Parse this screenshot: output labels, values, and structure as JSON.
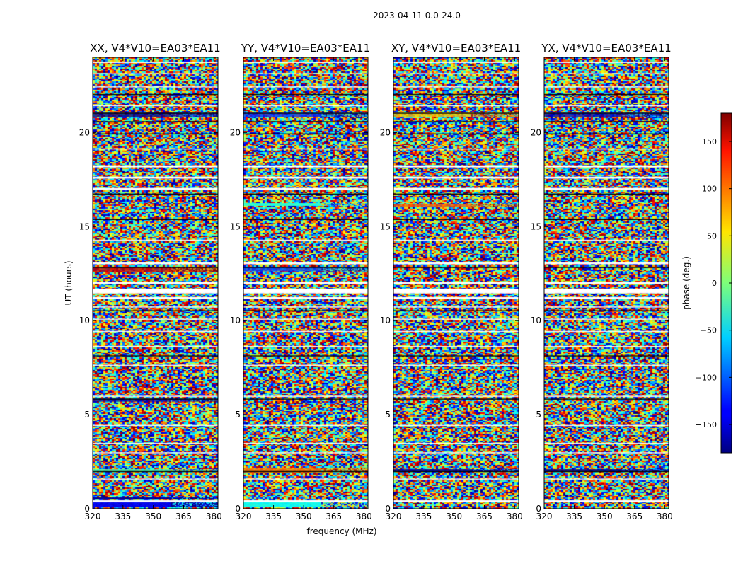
{
  "chart_data": {
    "type": "heatmap",
    "suptitle": "2023-04-11 0.0-24.0",
    "xlabel": "frequency (MHz)",
    "ylabel": "UT (hours)",
    "xlim": [
      320,
      382
    ],
    "ylim": [
      0,
      24
    ],
    "x_ticks": [
      320,
      335,
      350,
      365,
      380
    ],
    "y_ticks": [
      0,
      5,
      10,
      15,
      20
    ],
    "colormap": "jet",
    "colorbar": {
      "label": "phase (deg.)",
      "range": [
        -180,
        180
      ],
      "ticks": [
        150,
        100,
        50,
        0,
        -50,
        -100,
        -150
      ]
    },
    "panels": [
      {
        "title": "XX, V4*V10=EA03*EA11",
        "strong_bands": [
          {
            "t": [
              20.85,
              21.05
            ],
            "phase": -175
          },
          {
            "t": [
              12.6,
              12.85
            ],
            "phase": 155
          },
          {
            "t": [
              5.7,
              5.85
            ],
            "phase": -170
          },
          {
            "t": [
              0.1,
              0.45
            ],
            "phase": -140
          },
          {
            "t": [
              0.5,
              0.6
            ],
            "phase": -170
          },
          {
            "t": [
              1.95,
              2.1
            ],
            "phase": -20
          }
        ]
      },
      {
        "title": "YY, V4*V10=EA03*EA11",
        "strong_bands": [
          {
            "t": [
              20.85,
              21.05
            ],
            "phase": -120
          },
          {
            "t": [
              12.65,
              12.85
            ],
            "phase": -110
          },
          {
            "t": [
              16.1,
              16.25
            ],
            "phase": -30
          },
          {
            "t": [
              1.95,
              2.15
            ],
            "phase": 90
          },
          {
            "t": [
              0.1,
              0.45
            ],
            "phase": -40
          }
        ]
      },
      {
        "title": "XY, V4*V10=EA03*EA11",
        "strong_bands": [
          {
            "t": [
              20.85,
              21.05
            ],
            "phase": 60
          },
          {
            "t": [
              16.05,
              16.2
            ],
            "phase": 100
          },
          {
            "t": [
              1.95,
              2.1
            ],
            "phase": -170
          }
        ]
      },
      {
        "title": "YX, V4*V10=EA03*EA11",
        "strong_bands": [
          {
            "t": [
              20.85,
              21.05
            ],
            "phase": -160
          },
          {
            "t": [
              1.95,
              2.1
            ],
            "phase": -175
          }
        ]
      }
    ],
    "gaps_white": [
      [
        0.35,
        0.45
      ],
      [
        1.55,
        1.6
      ],
      [
        2.95,
        3.0
      ],
      [
        3.45,
        3.5
      ],
      [
        4.4,
        4.45
      ],
      [
        5.95,
        6.0
      ],
      [
        7.6,
        7.65
      ],
      [
        8.6,
        8.65
      ],
      [
        9.4,
        9.45
      ],
      [
        10.05,
        10.1
      ],
      [
        10.7,
        10.75
      ],
      [
        11.15,
        11.25
      ],
      [
        11.45,
        11.7
      ],
      [
        11.95,
        12.05
      ],
      [
        13.0,
        13.1
      ],
      [
        14.25,
        14.3
      ],
      [
        16.95,
        17.05
      ],
      [
        17.55,
        17.65
      ],
      [
        18.15,
        18.25
      ],
      [
        19.1,
        19.15
      ],
      [
        21.4,
        21.45
      ],
      [
        22.4,
        22.45
      ],
      [
        23.1,
        23.15
      ],
      [
        23.7,
        23.75
      ]
    ],
    "gaps_black": [
      [
        1.95,
        2.0
      ],
      [
        5.8,
        5.85
      ],
      [
        8.1,
        8.15
      ],
      [
        10.5,
        10.55
      ],
      [
        12.8,
        12.85
      ],
      [
        15.35,
        15.4
      ],
      [
        16.7,
        16.75
      ],
      [
        19.9,
        19.95
      ],
      [
        20.55,
        20.6
      ],
      [
        21.0,
        21.05
      ],
      [
        22.0,
        22.05
      ]
    ]
  }
}
